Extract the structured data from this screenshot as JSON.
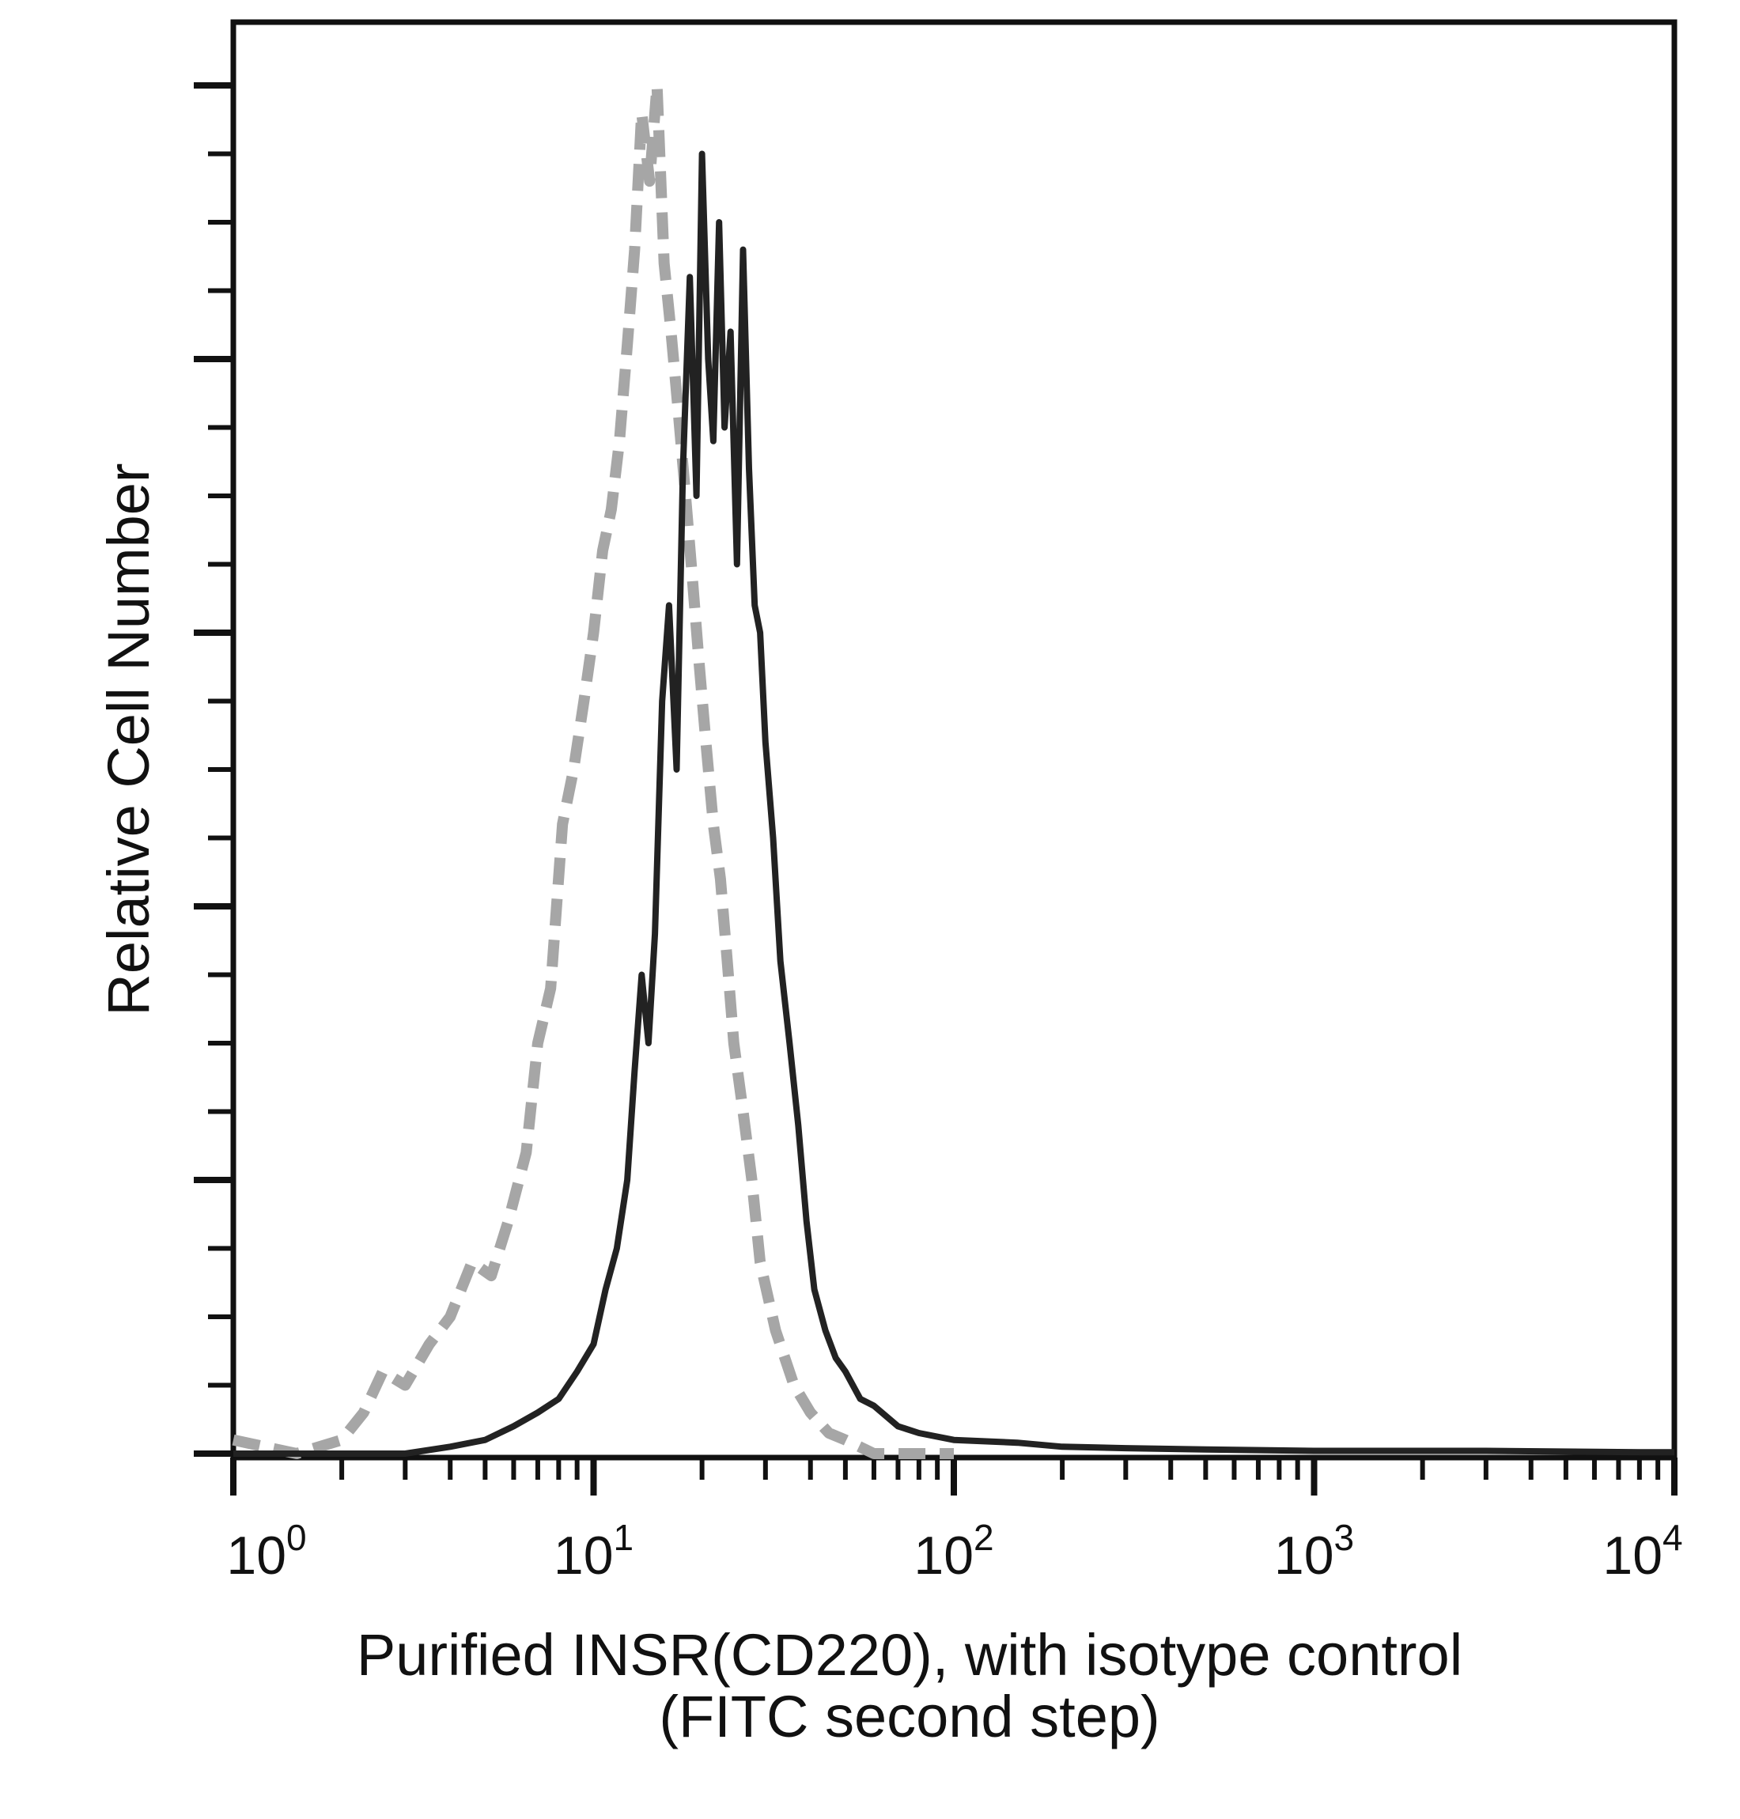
{
  "chart_data": {
    "type": "line",
    "title": "",
    "xlabel": [
      "Purified INSR(CD220), with isotype control",
      "(FITC second step)"
    ],
    "ylabel": "Relative Cell Number",
    "x_scale": "log",
    "xlim": [
      1,
      10000
    ],
    "ylim": [
      0,
      1
    ],
    "x_ticks": [
      {
        "value": 1,
        "base": "10",
        "exp": "0"
      },
      {
        "value": 10,
        "base": "10",
        "exp": "1"
      },
      {
        "value": 100,
        "base": "10",
        "exp": "2"
      },
      {
        "value": 1000,
        "base": "10",
        "exp": "3"
      },
      {
        "value": 10000,
        "base": "10",
        "exp": "4"
      }
    ],
    "y_ticks_major": [
      0,
      0.2,
      0.4,
      0.6,
      0.8,
      1.0
    ],
    "y_ticks_minor": [
      0.05,
      0.1,
      0.15,
      0.25,
      0.3,
      0.35,
      0.45,
      0.5,
      0.55,
      0.65,
      0.7,
      0.75,
      0.85,
      0.9,
      0.95
    ],
    "grid": false,
    "legend": "none",
    "series": [
      {
        "style": "dashed",
        "color": "#a6a6a6",
        "x": [
          1,
          1.5,
          2,
          2.3,
          2.6,
          3,
          3.5,
          4,
          4.6,
          5.2,
          5.8,
          6.5,
          7,
          7.6,
          8.2,
          8.8,
          9.4,
          10,
          10.6,
          11.2,
          11.8,
          12.4,
          13,
          13.6,
          14.3,
          15,
          15.7,
          16.4,
          17.2,
          18,
          18.8,
          19.6,
          20.5,
          21.5,
          22.5,
          23.5,
          24.5,
          26,
          27.5,
          29,
          32,
          36,
          40,
          45,
          50,
          60,
          80,
          100
        ],
        "y": [
          0.01,
          0.0,
          0.01,
          0.03,
          0.06,
          0.05,
          0.08,
          0.1,
          0.14,
          0.13,
          0.17,
          0.22,
          0.3,
          0.34,
          0.46,
          0.5,
          0.55,
          0.6,
          0.66,
          0.69,
          0.74,
          0.81,
          0.88,
          0.98,
          0.93,
          1.0,
          0.87,
          0.82,
          0.76,
          0.7,
          0.64,
          0.58,
          0.52,
          0.46,
          0.42,
          0.36,
          0.3,
          0.25,
          0.2,
          0.14,
          0.09,
          0.05,
          0.03,
          0.015,
          0.01,
          0.0,
          0.0,
          0.0
        ]
      },
      {
        "style": "solid",
        "color": "#222222",
        "x": [
          1,
          2,
          3,
          4,
          5,
          6,
          7,
          8,
          9,
          10,
          10.8,
          11.6,
          12.4,
          13,
          13.6,
          14.2,
          14.8,
          15.5,
          16.2,
          17,
          17.7,
          18.5,
          19.3,
          20,
          20.8,
          21.5,
          22.3,
          23.1,
          24,
          25,
          26,
          27,
          28,
          29,
          30,
          31.5,
          33,
          35,
          37,
          39,
          41,
          44,
          47,
          50,
          55,
          60,
          70,
          80,
          100,
          150,
          200,
          300,
          500,
          1000,
          3000,
          8000,
          10000
        ],
        "y": [
          0.0,
          0.0,
          0.0,
          0.005,
          0.01,
          0.02,
          0.03,
          0.04,
          0.06,
          0.08,
          0.12,
          0.15,
          0.2,
          0.28,
          0.35,
          0.3,
          0.38,
          0.55,
          0.62,
          0.5,
          0.72,
          0.86,
          0.7,
          0.95,
          0.8,
          0.74,
          0.9,
          0.75,
          0.82,
          0.65,
          0.88,
          0.72,
          0.62,
          0.6,
          0.52,
          0.45,
          0.36,
          0.3,
          0.24,
          0.17,
          0.12,
          0.09,
          0.07,
          0.06,
          0.04,
          0.035,
          0.02,
          0.015,
          0.01,
          0.008,
          0.005,
          0.004,
          0.003,
          0.002,
          0.002,
          0.001,
          0.001
        ]
      }
    ]
  }
}
